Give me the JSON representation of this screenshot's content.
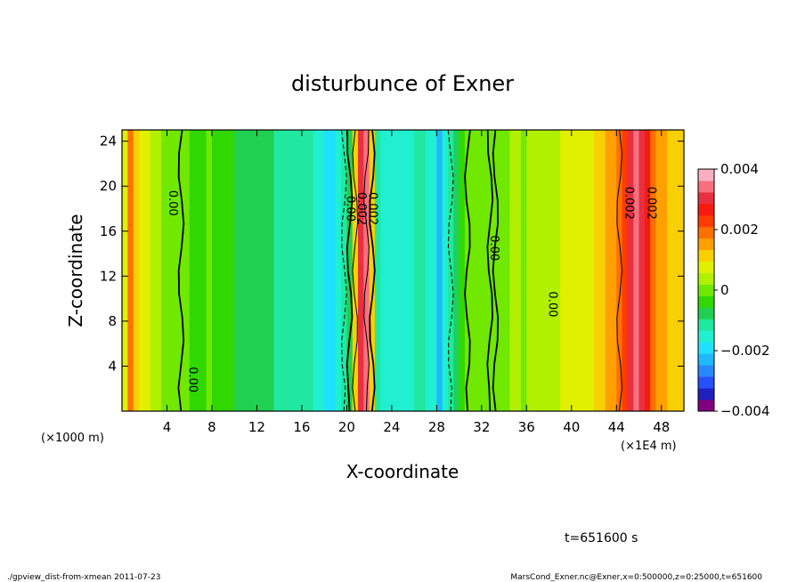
{
  "chart_data": {
    "type": "heatmap",
    "title": "disturbunce of Exner",
    "xlabel": "X-coordinate",
    "ylabel": "Z-coordinate",
    "x_unit_left": "(×1000 m)",
    "x_unit_right": "(×1E4 m)",
    "xlim": [
      0,
      50
    ],
    "ylim": [
      0,
      25
    ],
    "x_ticks": [
      "4",
      "8",
      "12",
      "16",
      "20",
      "24",
      "28",
      "32",
      "36",
      "40",
      "44",
      "48"
    ],
    "x_tick_values": [
      4,
      8,
      12,
      16,
      20,
      24,
      28,
      32,
      36,
      40,
      44,
      48
    ],
    "y_ticks": [
      "4",
      "8",
      "12",
      "16",
      "20",
      "24"
    ],
    "y_tick_values": [
      4,
      8,
      12,
      16,
      20,
      24
    ],
    "colorbar": {
      "min": -0.004,
      "max": 0.004,
      "tick_labels": [
        "0.004",
        "0.002",
        "0",
        "−0.002",
        "−0.004"
      ],
      "tick_values": [
        0.004,
        0.002,
        0,
        -0.002,
        -0.004
      ],
      "colors": [
        "#800080",
        "#2020c0",
        "#2850ff",
        "#2888ff",
        "#20b8ff",
        "#20e0ff",
        "#20f0d0",
        "#20e8a0",
        "#20d050",
        "#30d800",
        "#70e800",
        "#b0f000",
        "#e0f000",
        "#f8d000",
        "#ffa000",
        "#ff7000",
        "#ff3c00",
        "#f81a10",
        "#e83040",
        "#f87080",
        "#f8b0c0"
      ]
    },
    "contour_labels": [
      {
        "text": "0.00",
        "x": 4.2,
        "z": 18.5
      },
      {
        "text": "0.00",
        "x": 6.0,
        "z": 2.8
      },
      {
        "text": "0.00",
        "x": 20.0,
        "z": 18.0
      },
      {
        "text": "0.002",
        "x": 21.0,
        "z": 18.0
      },
      {
        "text": "0.002",
        "x": 22.0,
        "z": 18.0
      },
      {
        "text": "0.00",
        "x": 32.8,
        "z": 14.5
      },
      {
        "text": "0.00",
        "x": 38.0,
        "z": 9.5
      },
      {
        "text": "0.002",
        "x": 44.8,
        "z": 18.5
      },
      {
        "text": "0.002",
        "x": 46.8,
        "z": 18.5
      }
    ],
    "columns": [
      {
        "x": 0.0,
        "v": 0.0009
      },
      {
        "x": 0.5,
        "v": 0.0018
      },
      {
        "x": 1.0,
        "v": 0.0012
      },
      {
        "x": 1.5,
        "v": 0.0008
      },
      {
        "x": 2.0,
        "v": 0.0007
      },
      {
        "x": 2.5,
        "v": 0.0004
      },
      {
        "x": 3.0,
        "v": 0.0002
      },
      {
        "x": 3.5,
        "v": 0.0001
      },
      {
        "x": 4.0,
        "v": 0.0001
      },
      {
        "x": 4.5,
        "v": 0.0001
      },
      {
        "x": 5.0,
        "v": 0.0
      },
      {
        "x": 5.5,
        "v": -0.0001
      },
      {
        "x": 6.0,
        "v": -0.0002
      },
      {
        "x": 6.5,
        "v": -0.0003
      },
      {
        "x": 7.0,
        "v": -0.0002
      },
      {
        "x": 7.5,
        "v": -0.0001
      },
      {
        "x": 8.0,
        "v": -0.0002
      },
      {
        "x": 8.5,
        "v": -0.0003
      },
      {
        "x": 9.0,
        "v": -0.0004
      },
      {
        "x": 9.5,
        "v": -0.0005
      },
      {
        "x": 10.0,
        "v": -0.0006
      },
      {
        "x": 10.5,
        "v": -0.0006
      },
      {
        "x": 11.0,
        "v": -0.0007
      },
      {
        "x": 11.5,
        "v": -0.0007
      },
      {
        "x": 12.0,
        "v": -0.0008
      },
      {
        "x": 12.5,
        "v": -0.0009
      },
      {
        "x": 13.0,
        "v": -0.0009
      },
      {
        "x": 13.5,
        "v": -0.001
      },
      {
        "x": 14.0,
        "v": -0.001
      },
      {
        "x": 14.5,
        "v": -0.0011
      },
      {
        "x": 15.0,
        "v": -0.0011
      },
      {
        "x": 15.5,
        "v": -0.0011
      },
      {
        "x": 16.0,
        "v": -0.0012
      },
      {
        "x": 16.5,
        "v": -0.0013
      },
      {
        "x": 17.0,
        "v": -0.0014
      },
      {
        "x": 17.5,
        "v": -0.0016
      },
      {
        "x": 18.0,
        "v": -0.0019
      },
      {
        "x": 18.5,
        "v": -0.0018
      },
      {
        "x": 19.0,
        "v": -0.0016
      },
      {
        "x": 19.5,
        "v": -0.0013
      },
      {
        "x": 20.0,
        "v": -0.0009
      },
      {
        "x": 20.5,
        "v": 0.0012
      },
      {
        "x": 21.0,
        "v": 0.0031
      },
      {
        "x": 21.5,
        "v": 0.0034
      },
      {
        "x": 22.0,
        "v": 0.0012
      },
      {
        "x": 22.5,
        "v": -0.001
      },
      {
        "x": 23.0,
        "v": -0.0014
      },
      {
        "x": 23.5,
        "v": -0.0015
      },
      {
        "x": 24.0,
        "v": -0.0016
      },
      {
        "x": 24.5,
        "v": -0.0015
      },
      {
        "x": 25.0,
        "v": -0.0014
      },
      {
        "x": 25.5,
        "v": -0.0014
      },
      {
        "x": 26.0,
        "v": -0.0013
      },
      {
        "x": 26.5,
        "v": -0.0013
      },
      {
        "x": 27.0,
        "v": -0.0014
      },
      {
        "x": 27.5,
        "v": -0.0017
      },
      {
        "x": 28.0,
        "v": -0.0021
      },
      {
        "x": 28.5,
        "v": -0.0016
      },
      {
        "x": 29.0,
        "v": -0.0012
      },
      {
        "x": 29.5,
        "v": -0.0008
      },
      {
        "x": 30.0,
        "v": -0.0004
      },
      {
        "x": 30.5,
        "v": -0.0001
      },
      {
        "x": 31.0,
        "v": 0.0
      },
      {
        "x": 31.5,
        "v": 0.0001
      },
      {
        "x": 32.0,
        "v": 0.0001
      },
      {
        "x": 32.5,
        "v": 0.0
      },
      {
        "x": 33.0,
        "v": -0.0001
      },
      {
        "x": 33.5,
        "v": 0.0
      },
      {
        "x": 34.0,
        "v": 0.0001
      },
      {
        "x": 34.5,
        "v": 0.0002
      },
      {
        "x": 35.0,
        "v": 0.0002
      },
      {
        "x": 35.5,
        "v": 0.0001
      },
      {
        "x": 36.0,
        "v": 0.0002
      },
      {
        "x": 36.5,
        "v": 0.0003
      },
      {
        "x": 37.0,
        "v": 0.0003
      },
      {
        "x": 37.5,
        "v": 0.0004
      },
      {
        "x": 38.0,
        "v": 0.0004
      },
      {
        "x": 38.5,
        "v": 0.0005
      },
      {
        "x": 39.0,
        "v": 0.0006
      },
      {
        "x": 39.5,
        "v": 0.0006
      },
      {
        "x": 40.0,
        "v": 0.0007
      },
      {
        "x": 40.5,
        "v": 0.0008
      },
      {
        "x": 41.0,
        "v": 0.0009
      },
      {
        "x": 41.5,
        "v": 0.0009
      },
      {
        "x": 42.0,
        "v": 0.0011
      },
      {
        "x": 42.5,
        "v": 0.0012
      },
      {
        "x": 43.0,
        "v": 0.0014
      },
      {
        "x": 43.5,
        "v": 0.0016
      },
      {
        "x": 44.0,
        "v": 0.0018
      },
      {
        "x": 44.5,
        "v": 0.0024
      },
      {
        "x": 45.0,
        "v": 0.0031
      },
      {
        "x": 45.5,
        "v": 0.0036
      },
      {
        "x": 46.0,
        "v": 0.0031
      },
      {
        "x": 46.5,
        "v": 0.0026
      },
      {
        "x": 47.0,
        "v": 0.002
      },
      {
        "x": 47.5,
        "v": 0.0016
      },
      {
        "x": 48.0,
        "v": 0.0014
      },
      {
        "x": 48.5,
        "v": 0.0012
      },
      {
        "x": 49.0,
        "v": 0.0012
      },
      {
        "x": 49.5,
        "v": 0.001
      }
    ]
  },
  "time_label": "t=651600 s",
  "footer": {
    "left": "./gpview_dist-from-xmean 2011-07-23",
    "right": "MarsCond_Exner.nc@Exner,x=0:500000,z=0:25000,t=651600"
  }
}
